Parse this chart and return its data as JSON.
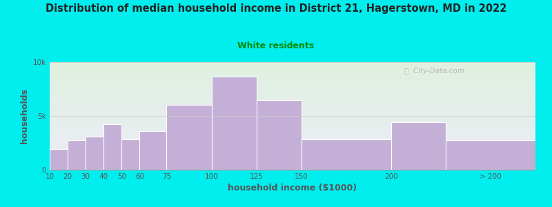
{
  "title": "Distribution of median household income in District 21, Hagerstown, MD in 2022",
  "subtitle": "White residents",
  "xlabel": "household income ($1000)",
  "ylabel": "households",
  "background_color": "#00EEEE",
  "plot_bg_gradient_top": "#dff0df",
  "plot_bg_gradient_bottom": "#ececf8",
  "bar_color": "#c4afd6",
  "bar_edge_color": "#ffffff",
  "title_color": "#222222",
  "subtitle_color": "#008800",
  "axis_label_color": "#555555",
  "tick_label_color": "#555555",
  "categories": [
    "10",
    "20",
    "30",
    "40",
    "50",
    "60",
    "75",
    "100",
    "125",
    "150",
    "200",
    "> 200"
  ],
  "bar_lefts": [
    10,
    20,
    30,
    40,
    50,
    60,
    75,
    100,
    125,
    150,
    200,
    230
  ],
  "bar_widths": [
    10,
    10,
    10,
    10,
    10,
    15,
    25,
    25,
    25,
    50,
    30,
    50
  ],
  "values": [
    1950,
    2750,
    3050,
    4200,
    2800,
    3600,
    6000,
    8650,
    6500,
    2800,
    4400,
    2750
  ],
  "ylim": [
    0,
    10000
  ],
  "xlim": [
    10,
    280
  ],
  "yticks": [
    0,
    5000,
    10000
  ],
  "ytick_labels": [
    "0",
    "5k",
    "10k"
  ],
  "xtick_positions": [
    10,
    20,
    30,
    40,
    50,
    60,
    75,
    100,
    125,
    150,
    200,
    255
  ],
  "xtick_labels": [
    "10",
    "20",
    "30",
    "40",
    "50",
    "60",
    "75",
    "100",
    "125",
    "150",
    "200",
    "> 200"
  ],
  "watermark": "Ⓢ  City-Data.com"
}
